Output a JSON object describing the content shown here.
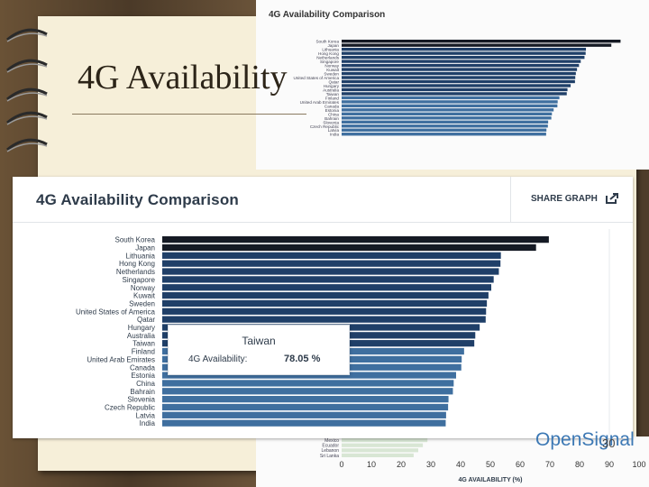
{
  "slide": {
    "title": "4G Availability",
    "page_number": "30"
  },
  "background_chart": {
    "title": "4G Availability Comparison",
    "countries": [
      "South Korea",
      "Japan",
      "Lithuania",
      "Hong Kong",
      "Netherlands",
      "Singapore",
      "Norway",
      "Kuwait",
      "Sweden",
      "United States of America",
      "Qatar",
      "Hungary",
      "Australia",
      "Taiwan",
      "Finland",
      "United Arab Emirates",
      "Canada",
      "Estonia",
      "China",
      "Bahrain",
      "Slovenia",
      "Czech Republic",
      "Latvia",
      "India"
    ],
    "bottom_countries": [
      "Mexico",
      "Ecuador",
      "Lebanon",
      "Sri Lanka"
    ],
    "x_ticks": [
      "0",
      "10",
      "20",
      "30",
      "40",
      "50",
      "60",
      "70",
      "80",
      "90",
      "100"
    ],
    "xlabel": "4G AVAILABILITY (%)",
    "brand": "OpenSignal"
  },
  "card": {
    "title": "4G Availability Comparison",
    "share_label": "SHARE GRAPH",
    "share_icon": "share-icon"
  },
  "tooltip": {
    "country": "Taiwan",
    "label": "4G Availability:",
    "value": "78.05 %"
  },
  "colors": {
    "bar_top": "#151a24",
    "bar_mid": "#1f3f68",
    "bar_low": "#3f6f9f",
    "brand": "#3c78b4"
  },
  "chart_data": {
    "type": "bar",
    "orientation": "horizontal",
    "title": "4G Availability Comparison",
    "xlabel": "4G AVAILABILITY (%)",
    "xlim": [
      0,
      100
    ],
    "categories": [
      "South Korea",
      "Japan",
      "Lithuania",
      "Hong Kong",
      "Netherlands",
      "Singapore",
      "Norway",
      "Kuwait",
      "Sweden",
      "United States of America",
      "Qatar",
      "Hungary",
      "Australia",
      "Taiwan",
      "Finland",
      "United Arab Emirates",
      "Canada",
      "Estonia",
      "China",
      "Bahrain",
      "Slovenia",
      "Czech Republic",
      "Latvia",
      "India"
    ],
    "values": [
      96.7,
      93.5,
      84.7,
      84.6,
      84.2,
      82.9,
      82.3,
      81.6,
      81.2,
      81.0,
      80.9,
      79.4,
      78.3,
      78.05,
      75.5,
      74.9,
      74.8,
      73.5,
      72.9,
      72.7,
      71.6,
      71.5,
      71.0,
      70.9
    ]
  }
}
